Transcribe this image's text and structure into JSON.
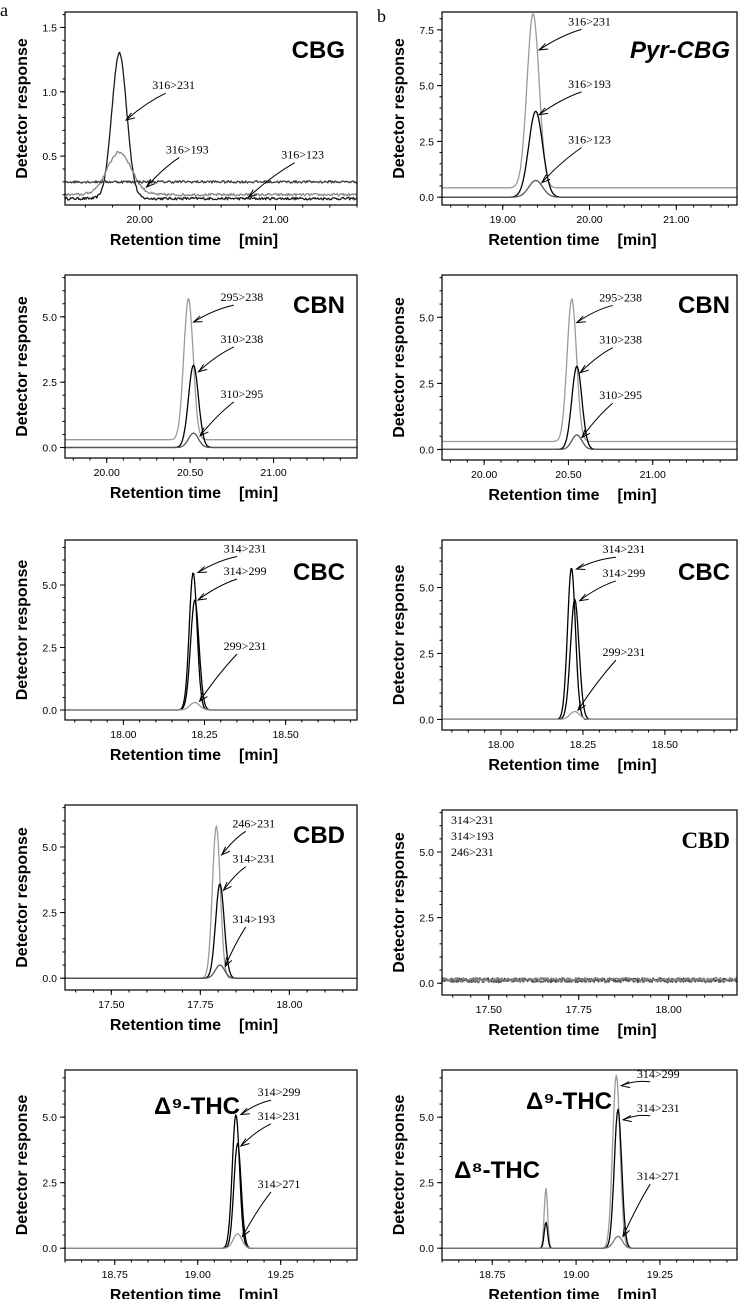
{
  "panel_labels": [
    "a",
    "b"
  ],
  "common": {
    "ylabel": "Detector response",
    "xlabel": "Retention time",
    "xunit": "[min]"
  },
  "chart_data": [
    {
      "type": "line",
      "compound": "CBG",
      "title_style": "plain",
      "xlim": [
        19.45,
        21.6
      ],
      "ylim": [
        0.12,
        1.62
      ],
      "xticks": [
        20.0,
        21.0
      ],
      "xticklabels": [
        "20.00",
        "21.00"
      ],
      "yticks": [
        0.5,
        1.0,
        1.5
      ],
      "yticklabels": [
        "0.5",
        "1.0",
        "1.5"
      ],
      "baseline_noise": true,
      "series": [
        {
          "name": "316>231",
          "color": "#1a1a1a",
          "baseline": 0.17,
          "peaks": [
            {
              "x": 19.85,
              "h": 1.13,
              "w": 0.055
            }
          ]
        },
        {
          "name": "316>193",
          "color": "#888888",
          "baseline": 0.2,
          "peaks": [
            {
              "x": 19.85,
              "h": 0.33,
              "w": 0.09
            }
          ]
        },
        {
          "name": "316>123",
          "color": "#3a3a3a",
          "baseline": 0.3,
          "peaks": []
        }
      ],
      "annotations": [
        {
          "text": "316>231",
          "tx": 20.25,
          "ty": 1.02,
          "ax": 19.9,
          "ay": 0.78
        },
        {
          "text": "316>193",
          "tx": 20.35,
          "ty": 0.52,
          "ax": 20.05,
          "ay": 0.26
        },
        {
          "text": "316>123",
          "tx": 21.2,
          "ty": 0.48,
          "ax": 20.8,
          "ay": 0.18
        }
      ]
    },
    {
      "type": "line",
      "compound": "Pyr-CBG",
      "title_style": "italic",
      "xlim": [
        18.3,
        21.7
      ],
      "ylim": [
        -0.35,
        8.3
      ],
      "xticks": [
        19.0,
        20.0,
        21.0
      ],
      "xticklabels": [
        "19.00",
        "20.00",
        "21.00"
      ],
      "yticks": [
        0.0,
        2.5,
        5.0,
        7.5
      ],
      "yticklabels": [
        "0.0",
        "2.5",
        "5.0",
        "7.5"
      ],
      "series": [
        {
          "name": "316>231",
          "color": "#9a9a9a",
          "baseline": 0.42,
          "peaks": [
            {
              "x": 19.35,
              "h": 7.8,
              "w": 0.07
            }
          ]
        },
        {
          "name": "316>193",
          "color": "#000000",
          "baseline": 0.0,
          "peaks": [
            {
              "x": 19.38,
              "h": 3.85,
              "w": 0.08
            }
          ]
        },
        {
          "name": "316>123",
          "color": "#555555",
          "baseline": 0.0,
          "peaks": [
            {
              "x": 19.38,
              "h": 0.75,
              "w": 0.08
            }
          ]
        }
      ],
      "annotations": [
        {
          "text": "316>231",
          "tx": 20.0,
          "ty": 7.7,
          "ax": 19.42,
          "ay": 6.6
        },
        {
          "text": "316>193",
          "tx": 20.0,
          "ty": 4.9,
          "ax": 19.42,
          "ay": 3.7
        },
        {
          "text": "316>123",
          "tx": 20.0,
          "ty": 2.4,
          "ax": 19.45,
          "ay": 0.65
        }
      ]
    },
    {
      "type": "line",
      "compound": "CBN",
      "title_style": "plain",
      "xlim": [
        19.75,
        21.5
      ],
      "ylim": [
        -0.4,
        6.6
      ],
      "xticks": [
        20.0,
        20.5,
        21.0
      ],
      "xticklabels": [
        "20.00",
        "20.50",
        "21.00"
      ],
      "yticks": [
        0.0,
        2.5,
        5.0
      ],
      "yticklabels": [
        "0.0",
        "2.5",
        "5.0"
      ],
      "series": [
        {
          "name": "295>238",
          "color": "#9a9a9a",
          "baseline": 0.3,
          "peaks": [
            {
              "x": 20.49,
              "h": 5.4,
              "w": 0.028
            }
          ]
        },
        {
          "name": "310>238",
          "color": "#000000",
          "baseline": 0.0,
          "peaks": [
            {
              "x": 20.52,
              "h": 3.15,
              "w": 0.03
            }
          ]
        },
        {
          "name": "310>295",
          "color": "#555555",
          "baseline": 0.0,
          "peaks": [
            {
              "x": 20.52,
              "h": 0.55,
              "w": 0.03
            }
          ]
        }
      ],
      "annotations": [
        {
          "text": "295>238",
          "tx": 20.81,
          "ty": 5.6,
          "ax": 20.52,
          "ay": 4.8
        },
        {
          "text": "310>238",
          "tx": 20.81,
          "ty": 4.0,
          "ax": 20.55,
          "ay": 2.9
        },
        {
          "text": "310>295",
          "tx": 20.81,
          "ty": 1.9,
          "ax": 20.56,
          "ay": 0.45
        }
      ]
    },
    {
      "type": "line",
      "compound": "CBN",
      "title_style": "plain",
      "xlim": [
        19.75,
        21.5
      ],
      "ylim": [
        -0.4,
        6.6
      ],
      "xticks": [
        20.0,
        20.5,
        21.0
      ],
      "xticklabels": [
        "20.00",
        "20.50",
        "21.00"
      ],
      "yticks": [
        0.0,
        2.5,
        5.0
      ],
      "yticklabels": [
        "0.0",
        "2.5",
        "5.0"
      ],
      "series": [
        {
          "name": "295>238",
          "color": "#9a9a9a",
          "baseline": 0.3,
          "peaks": [
            {
              "x": 20.52,
              "h": 5.4,
              "w": 0.028
            }
          ]
        },
        {
          "name": "310>238",
          "color": "#000000",
          "baseline": 0.0,
          "peaks": [
            {
              "x": 20.55,
              "h": 3.15,
              "w": 0.03
            }
          ]
        },
        {
          "name": "310>295",
          "color": "#555555",
          "baseline": 0.0,
          "peaks": [
            {
              "x": 20.55,
              "h": 0.55,
              "w": 0.03
            }
          ]
        }
      ],
      "annotations": [
        {
          "text": "295>238",
          "tx": 20.81,
          "ty": 5.6,
          "ax": 20.55,
          "ay": 4.8
        },
        {
          "text": "310>238",
          "tx": 20.81,
          "ty": 4.0,
          "ax": 20.57,
          "ay": 2.9
        },
        {
          "text": "310>295",
          "tx": 20.81,
          "ty": 1.9,
          "ax": 20.58,
          "ay": 0.45
        }
      ]
    },
    {
      "type": "line",
      "compound": "CBC",
      "title_style": "plain",
      "xlim": [
        17.82,
        18.72
      ],
      "ylim": [
        -0.4,
        6.8
      ],
      "xticks": [
        18.0,
        18.25,
        18.5
      ],
      "xticklabels": [
        "18.00",
        "18.25",
        "18.50"
      ],
      "yticks": [
        0.0,
        2.5,
        5.0
      ],
      "yticklabels": [
        "0.0",
        "2.5",
        "5.0"
      ],
      "series": [
        {
          "name": "314>231",
          "color": "#000000",
          "baseline": 0.0,
          "peaks": [
            {
              "x": 18.215,
              "h": 5.5,
              "w": 0.012
            }
          ]
        },
        {
          "name": "314>299",
          "color": "#000000",
          "baseline": 0.0,
          "peaks": [
            {
              "x": 18.22,
              "h": 4.4,
              "w": 0.013
            }
          ]
        },
        {
          "name": "299>231",
          "color": "#9a9a9a",
          "baseline": 0.0,
          "peaks": [
            {
              "x": 18.22,
              "h": 0.3,
              "w": 0.015
            }
          ]
        }
      ],
      "annotations": [
        {
          "text": "314>231",
          "tx": 18.375,
          "ty": 6.3,
          "ax": 18.23,
          "ay": 5.5
        },
        {
          "text": "314>299",
          "tx": 18.375,
          "ty": 5.4,
          "ax": 18.23,
          "ay": 4.4
        },
        {
          "text": "299>231",
          "tx": 18.375,
          "ty": 2.4,
          "ax": 18.235,
          "ay": 0.35
        }
      ]
    },
    {
      "type": "line",
      "compound": "CBC",
      "title_style": "plain",
      "xlim": [
        17.82,
        18.72
      ],
      "ylim": [
        -0.4,
        6.8
      ],
      "xticks": [
        18.0,
        18.25,
        18.5
      ],
      "xticklabels": [
        "18.00",
        "18.25",
        "18.50"
      ],
      "yticks": [
        0.0,
        2.5,
        5.0
      ],
      "yticklabels": [
        "0.0",
        "2.5",
        "5.0"
      ],
      "series": [
        {
          "name": "314>231",
          "color": "#000000",
          "baseline": 0.0,
          "peaks": [
            {
              "x": 18.215,
              "h": 5.75,
              "w": 0.012
            }
          ]
        },
        {
          "name": "314>299",
          "color": "#000000",
          "baseline": 0.0,
          "peaks": [
            {
              "x": 18.225,
              "h": 4.55,
              "w": 0.013
            }
          ]
        },
        {
          "name": "299>231",
          "color": "#9a9a9a",
          "baseline": 0.0,
          "peaks": [
            {
              "x": 18.225,
              "h": 0.3,
              "w": 0.015
            }
          ]
        }
      ],
      "annotations": [
        {
          "text": "314>231",
          "tx": 18.375,
          "ty": 6.3,
          "ax": 18.23,
          "ay": 5.7
        },
        {
          "text": "314>299",
          "tx": 18.375,
          "ty": 5.4,
          "ax": 18.24,
          "ay": 4.5
        },
        {
          "text": "299>231",
          "tx": 18.375,
          "ty": 2.4,
          "ax": 18.235,
          "ay": 0.35
        }
      ]
    },
    {
      "type": "line",
      "compound": "CBD",
      "title_style": "plain",
      "xlim": [
        17.37,
        18.19
      ],
      "ylim": [
        -0.45,
        6.6
      ],
      "xticks": [
        17.5,
        17.75,
        18.0
      ],
      "xticklabels": [
        "17.50",
        "17.75",
        "18.00"
      ],
      "yticks": [
        0.0,
        2.5,
        5.0
      ],
      "yticklabels": [
        "0.0",
        "2.5",
        "5.0"
      ],
      "series": [
        {
          "name": "246>231",
          "color": "#9a9a9a",
          "baseline": 0.0,
          "peaks": [
            {
              "x": 17.795,
              "h": 5.8,
              "w": 0.011
            }
          ]
        },
        {
          "name": "314>231",
          "color": "#000000",
          "baseline": 0.0,
          "peaks": [
            {
              "x": 17.805,
              "h": 3.6,
              "w": 0.012
            }
          ]
        },
        {
          "name": "314>193",
          "color": "#555555",
          "baseline": 0.0,
          "peaks": [
            {
              "x": 17.805,
              "h": 0.5,
              "w": 0.013
            }
          ]
        }
      ],
      "annotations": [
        {
          "text": "246>231",
          "tx": 17.9,
          "ty": 5.75,
          "ax": 17.81,
          "ay": 4.7
        },
        {
          "text": "314>231",
          "tx": 17.9,
          "ty": 4.4,
          "ax": 17.815,
          "ay": 3.35
        },
        {
          "text": "314>193",
          "tx": 17.9,
          "ty": 2.1,
          "ax": 17.82,
          "ay": 0.45
        }
      ]
    },
    {
      "type": "line",
      "compound": "CBD",
      "title_style": "serif",
      "xlim": [
        17.37,
        18.19
      ],
      "ylim": [
        -0.45,
        6.6
      ],
      "xticks": [
        17.5,
        17.75,
        18.0
      ],
      "xticklabels": [
        "17.50",
        "17.75",
        "18.00"
      ],
      "yticks": [
        0.0,
        2.5,
        5.0
      ],
      "yticklabels": [
        "0.0",
        "2.5",
        "5.0"
      ],
      "noise_series": true,
      "series": [
        {
          "name": "314>231",
          "color": "#333333",
          "baseline": 0.12,
          "peaks": []
        },
        {
          "name": "314>193",
          "color": "#555555",
          "baseline": 0.1,
          "peaks": []
        },
        {
          "name": "246>231",
          "color": "#888888",
          "baseline": 0.14,
          "peaks": []
        }
      ],
      "legend_text": [
        "314>231",
        "314>193",
        "246>231"
      ],
      "legend_placement": "top-left",
      "annotations": []
    },
    {
      "type": "line",
      "compound": "Δ⁹-THC",
      "title_style": "plain",
      "xlim": [
        18.6,
        19.48
      ],
      "ylim": [
        -0.45,
        6.8
      ],
      "xticks": [
        18.75,
        19.0,
        19.25
      ],
      "xticklabels": [
        "18.75",
        "19.00",
        "19.25"
      ],
      "yticks": [
        0.0,
        2.5,
        5.0
      ],
      "yticklabels": [
        "0.0",
        "2.5",
        "5.0"
      ],
      "series": [
        {
          "name": "314>299",
          "color": "#000000",
          "baseline": 0.0,
          "peaks": [
            {
              "x": 19.115,
              "h": 5.1,
              "w": 0.011
            }
          ]
        },
        {
          "name": "314>231",
          "color": "#000000",
          "baseline": 0.0,
          "peaks": [
            {
              "x": 19.12,
              "h": 4.0,
              "w": 0.011
            }
          ]
        },
        {
          "name": "314>271",
          "color": "#9a9a9a",
          "baseline": 0.0,
          "peaks": [
            {
              "x": 19.12,
              "h": 0.55,
              "w": 0.013
            }
          ]
        }
      ],
      "annotations": [
        {
          "text": "314>299",
          "tx": 19.245,
          "ty": 5.8,
          "ax": 19.13,
          "ay": 5.1
        },
        {
          "text": "314>231",
          "tx": 19.245,
          "ty": 4.9,
          "ax": 19.13,
          "ay": 3.9
        },
        {
          "text": "314>271",
          "tx": 19.245,
          "ty": 2.3,
          "ax": 19.135,
          "ay": 0.45
        }
      ]
    },
    {
      "type": "line",
      "compound": "Δ⁹-THC",
      "compound2": "Δ⁸-THC",
      "title_style": "plain",
      "xlim": [
        18.6,
        19.48
      ],
      "ylim": [
        -0.45,
        6.8
      ],
      "xticks": [
        18.75,
        19.0,
        19.25
      ],
      "xticklabels": [
        "18.75",
        "19.00",
        "19.25"
      ],
      "yticks": [
        0.0,
        2.5,
        5.0
      ],
      "yticklabels": [
        "0.0",
        "2.5",
        "5.0"
      ],
      "series": [
        {
          "name": "314>299",
          "color": "#9a9a9a",
          "baseline": 0.0,
          "peaks": [
            {
              "x": 18.91,
              "h": 2.3,
              "w": 0.005
            },
            {
              "x": 19.12,
              "h": 6.6,
              "w": 0.011
            }
          ]
        },
        {
          "name": "314>231",
          "color": "#000000",
          "baseline": 0.0,
          "peaks": [
            {
              "x": 18.91,
              "h": 1.0,
              "w": 0.005
            },
            {
              "x": 19.125,
              "h": 5.3,
              "w": 0.011
            }
          ]
        },
        {
          "name": "314>271",
          "color": "#777777",
          "baseline": 0.0,
          "peaks": [
            {
              "x": 19.125,
              "h": 0.45,
              "w": 0.013
            }
          ]
        }
      ],
      "annotations": [
        {
          "text": "314>299",
          "tx": 19.245,
          "ty": 6.5,
          "ax": 19.135,
          "ay": 6.2
        },
        {
          "text": "314>231",
          "tx": 19.245,
          "ty": 5.2,
          "ax": 19.14,
          "ay": 4.9
        },
        {
          "text": "314>271",
          "tx": 19.245,
          "ty": 2.6,
          "ax": 19.14,
          "ay": 0.45
        }
      ]
    }
  ]
}
